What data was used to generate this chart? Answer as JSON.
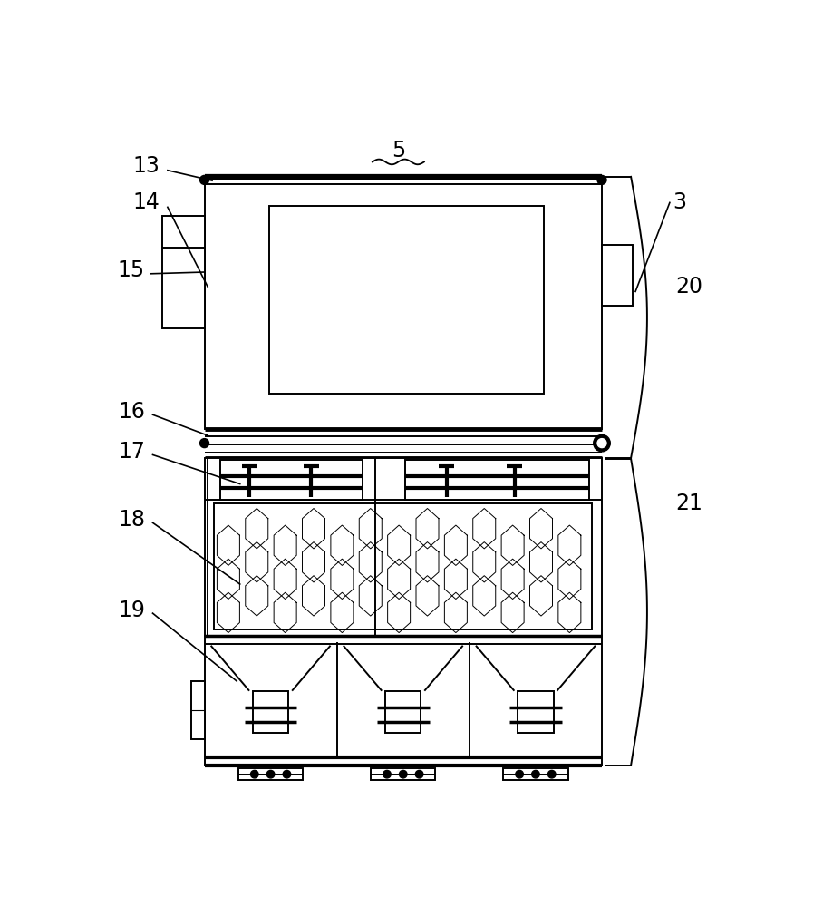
{
  "bg_color": "#ffffff",
  "line_color": "#000000",
  "fig_width": 9.2,
  "fig_height": 10.0,
  "ML": 0.155,
  "MR": 0.77,
  "MT": 0.935,
  "MB": 0.025,
  "SEP1": 0.545,
  "SEP2": 0.225,
  "lw_main": 1.4,
  "lw_thick": 3.0
}
